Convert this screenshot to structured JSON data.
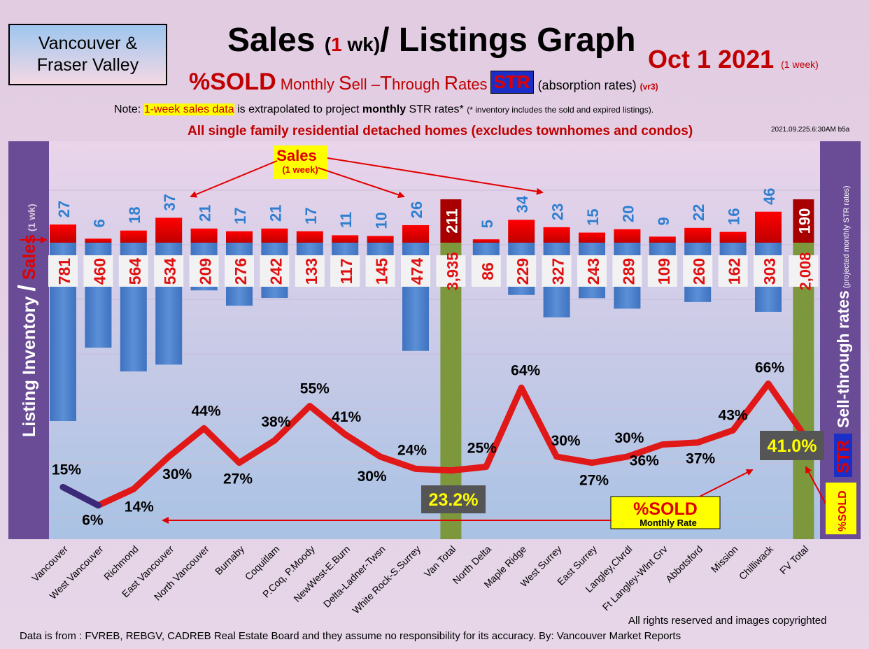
{
  "header": {
    "region_line1": "Vancouver &",
    "region_line2": "Fraser Valley",
    "title_a": "Sales ",
    "title_b": "(",
    "title_c": "1",
    "title_d": " wk)",
    "title_e": "/ Listings Graph",
    "date_main": "Oct 1  2021",
    "date_sub": "(1 week)",
    "sold": "%SOLD",
    "str_line_a": " Monthly ",
    "str_S": "S",
    "str_line_b": "ell –",
    "str_T": "T",
    "str_line_c": "hrough ",
    "str_R": "R",
    "str_line_d": "ates",
    "str_badge": "STR",
    "absorption": "(absorption rates) ",
    "vr3": "(vr3)",
    "note_a": "Note: ",
    "note_hl": "1-week sales data",
    "note_b": " is extrapolated to project ",
    "note_monthly": "monthly",
    "note_c": " STR rates* ",
    "note_d": "(* inventory includes the sold and expired listings).",
    "all_sf": "All single family residential detached homes (excludes townhomes and condos)",
    "version": "2021.09.225.6:30AM b5a"
  },
  "side": {
    "left_a": "Listing Inventory ",
    "left_slash": "/",
    "left_sales": " Sales",
    "left_wk": " (1 wk)",
    "right_main": "Sell-through rates",
    "right_sub": " (projected monthly STR rates)",
    "str": "STR",
    "sold_small": "%SOLD"
  },
  "annotations": {
    "sales_label": "Sales",
    "sales_sub": "(1 week)",
    "sold_label": "%SOLD",
    "sold_sub": "Monthly Rate",
    "van_total_pct": "23.2%",
    "fv_total_pct": "41.0%"
  },
  "footer": {
    "rights": "All rights reserved and  images copyrighted",
    "source": "Data is from : FVREB, REBGV, CADREB Real Estate Board and they assume no responsibility for its accuracy. By: Vancouver Market Reports"
  },
  "colors": {
    "sales_bar": "#ff0000",
    "total_sales_bar": "#a80000",
    "inventory_bar": "#5b8fd6",
    "total_bar": "#7d973c",
    "str_line": "#e01818",
    "sales_value": "#2f7fd0",
    "inventory_value": "#e01010",
    "chart_border": "#6a4b96"
  },
  "chart_data": {
    "type": "bar",
    "categories": [
      "Vancouver",
      "West Vancouver",
      "Richmond",
      "East Vancouver",
      "North Vancouver",
      "Burnaby",
      "Coquitlam",
      "P.Coq, P.Moody",
      "NewWest-E.Burn",
      "Delta-Ladner-Twsn",
      "White Rock-S.Surrey",
      "Van Total",
      "North Delta",
      "Maple Ridge",
      "West Surrey",
      "East Surrey",
      "Langley,Clvrdl",
      "Ft Langley-Wlnt Grv",
      "Abbotsford",
      "Mission",
      "Chilliwack",
      "FV Total"
    ],
    "series": [
      {
        "values": [
          27,
          6,
          18,
          37,
          21,
          17,
          21,
          17,
          11,
          10,
          26,
          211,
          5,
          34,
          23,
          15,
          20,
          9,
          22,
          16,
          46,
          190
        ]
      },
      {
        "values": [
          "781",
          "460",
          "564",
          "534",
          "209",
          "276",
          "242",
          "133",
          "117",
          "145",
          "474",
          "3,935",
          "86",
          "229",
          "327",
          "243",
          "289",
          "109",
          "260",
          "162",
          "303",
          "2,008"
        ]
      },
      {
        "values": [
          "15%",
          "6%",
          "14%",
          "30%",
          "44%",
          "27%",
          "38%",
          "55%",
          "41%",
          "30%",
          "24%",
          "23.2%",
          "25%",
          "64%",
          "30%",
          "27%",
          "30%",
          "36%",
          "37%",
          "43%",
          "66%",
          "41.0%"
        ]
      }
    ]
  }
}
